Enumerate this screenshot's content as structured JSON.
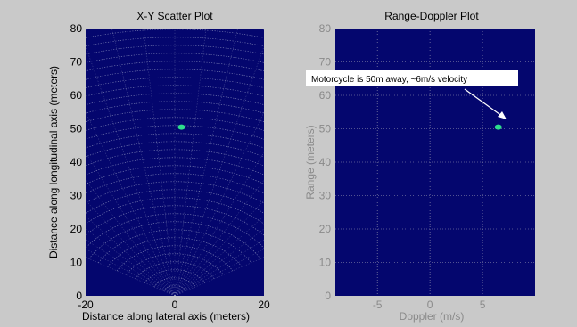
{
  "colors": {
    "page_bg": "#c9c9c9",
    "plot_bg": "#04066e",
    "target": "#2edc8c",
    "left_grid": "#9aa0c8",
    "right_grid": "#c8c8c8",
    "annotation_bg": "#ffffff",
    "arrow": "#ffffff"
  },
  "chart_data": [
    {
      "type": "scatter",
      "title": "X-Y Scatter Plot",
      "xlabel": "Distance along lateral axis (meters)",
      "ylabel": "Distance along longitudinal axis (meters)",
      "xlim": [
        -20,
        20
      ],
      "ylim": [
        0,
        80
      ],
      "xticks": [
        "-20",
        "0",
        "20"
      ],
      "yticks": [
        "0",
        "10",
        "20",
        "30",
        "40",
        "50",
        "60",
        "70",
        "80"
      ],
      "grid": "polar range-angle grid",
      "series": [
        {
          "x": [
            1.5
          ],
          "y": [
            50.5
          ]
        }
      ]
    },
    {
      "type": "scatter",
      "title": "Range-Doppler Plot",
      "xlabel": "Doppler (m/s)",
      "ylabel": "Range (meters)",
      "xlim": [
        -9,
        10
      ],
      "ylim": [
        0,
        80
      ],
      "xticks": [
        "-5",
        "0",
        "5"
      ],
      "yticks": [
        "0",
        "10",
        "20",
        "30",
        "40",
        "50",
        "60",
        "70",
        "80"
      ],
      "grid": true,
      "series": [
        {
          "x": [
            6.5
          ],
          "y": [
            50.5
          ]
        }
      ],
      "annotation": "Motorcycle is 50m away, ~6m/s velocity"
    }
  ]
}
